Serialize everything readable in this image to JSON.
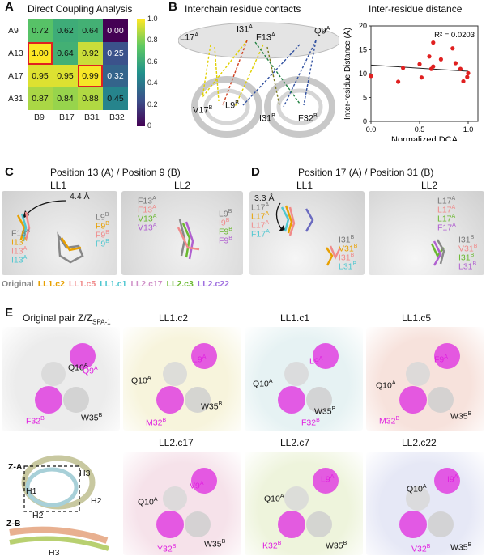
{
  "panels": {
    "A": {
      "letter": "A",
      "title": "Direct Coupling Analysis"
    },
    "B": {
      "letter": "B",
      "left_title": "Interchain residue contacts",
      "right_title": "Inter-residue distance"
    },
    "C": {
      "letter": "C",
      "title": "Position 13 (A) / Position 9 (B)"
    },
    "D": {
      "letter": "D",
      "title": "Position 17 (A) / Position 31 (B)"
    },
    "E": {
      "letter": "E"
    }
  },
  "heatmap": {
    "rows": [
      "A9",
      "A13",
      "A17",
      "A31"
    ],
    "cols": [
      "B9",
      "B17",
      "B31",
      "B32"
    ],
    "values": [
      [
        0.72,
        0.62,
        0.64,
        0.0
      ],
      [
        1.0,
        0.64,
        0.92,
        0.25
      ],
      [
        0.95,
        0.95,
        0.99,
        0.32
      ],
      [
        0.87,
        0.84,
        0.88,
        0.45
      ]
    ],
    "display": [
      [
        "0.72",
        "0.62",
        "0.64",
        "0.00"
      ],
      [
        "1.00",
        "0.64",
        "0.92",
        "0.25"
      ],
      [
        "0.95",
        "0.95",
        "0.99",
        "0.32"
      ],
      [
        "0.87",
        "0.84",
        "0.88",
        "0.45"
      ]
    ],
    "highlighted": [
      [
        1,
        0
      ],
      [
        2,
        2
      ]
    ],
    "colorbar_ticks": [
      "1.0",
      "0.8",
      "0.6",
      "0.4",
      "0.2",
      "0"
    ]
  },
  "contact_labels": {
    "L17A": [
      "L17",
      "A"
    ],
    "I31A": [
      "I31",
      "A"
    ],
    "F13A": [
      "F13",
      "A"
    ],
    "Q9A": [
      "Q9",
      "A"
    ],
    "V17B": [
      "V17",
      "B"
    ],
    "L9B": [
      "L9",
      "B"
    ],
    "I31B": [
      "I31",
      "B"
    ],
    "F32B": [
      "F32",
      "B"
    ]
  },
  "chart_data": {
    "type": "scatter",
    "title": "Inter-residue distance",
    "xlabel": "Normalized DCA",
    "ylabel": "Inter-residue Distance (Å)",
    "xlim": [
      0,
      1.1
    ],
    "ylim": [
      0,
      20
    ],
    "xticks": [
      "0.0",
      "0.5",
      "1.0"
    ],
    "yticks": [
      "0",
      "5",
      "10",
      "15",
      "20"
    ],
    "annotation": "R² = 0.0203",
    "x": [
      0.0,
      0.28,
      0.33,
      0.5,
      0.52,
      0.6,
      0.62,
      0.64,
      0.64,
      0.72,
      0.84,
      0.87,
      0.92,
      0.95,
      0.99,
      1.0
    ],
    "y": [
      9.5,
      8.3,
      11.2,
      12.0,
      9.2,
      13.6,
      11.0,
      16.5,
      11.5,
      13.0,
      15.3,
      12.2,
      11.0,
      8.4,
      9.3,
      10.1
    ],
    "fit": {
      "x": [
        0.0,
        1.0
      ],
      "y": [
        11.8,
        10.5
      ]
    },
    "point_color": "#e02020"
  },
  "panel_c": {
    "LL1": {
      "name": "LL1",
      "dist": "4.4 Å",
      "left": [
        [
          "F13",
          "A",
          "#777777"
        ],
        [
          "I13",
          "A",
          "#e8a000"
        ],
        [
          "I13",
          "A",
          "#f08a8a"
        ],
        [
          "I13",
          "A",
          "#4fc7d0"
        ]
      ],
      "right": [
        [
          "L9",
          "B",
          "#777777"
        ],
        [
          "F9",
          "B",
          "#e8a000"
        ],
        [
          "F9",
          "B",
          "#f08a8a"
        ],
        [
          "F9",
          "B",
          "#4fc7d0"
        ]
      ]
    },
    "LL2": {
      "name": "LL2",
      "left": [
        [
          "F13",
          "A",
          "#777777"
        ],
        [
          "F13",
          "A",
          "#f08a8a"
        ],
        [
          "V13",
          "A",
          "#6ab830"
        ],
        [
          "V13",
          "A",
          "#b060d0"
        ]
      ],
      "right": [
        [
          "L9",
          "B",
          "#777777"
        ],
        [
          "I9",
          "B",
          "#f08a8a"
        ],
        [
          "F9",
          "B",
          "#6ab830"
        ],
        [
          "F9",
          "B",
          "#b060d0"
        ]
      ]
    }
  },
  "panel_d": {
    "LL1": {
      "name": "LL1",
      "dist": "3.3 Å",
      "left": [
        [
          "L17",
          "A",
          "#777777"
        ],
        [
          "L17",
          "A",
          "#e8a000"
        ],
        [
          "L17",
          "A",
          "#f08a8a"
        ],
        [
          "F17",
          "A",
          "#4fc7d0"
        ]
      ],
      "right": [
        [
          "I31",
          "B",
          "#777777"
        ],
        [
          "V31",
          "B",
          "#e8a000"
        ],
        [
          "I31",
          "B",
          "#f08a8a"
        ],
        [
          "L31",
          "B",
          "#4fc7d0"
        ]
      ]
    },
    "LL2": {
      "name": "LL2",
      "left": [
        [
          "L17",
          "A",
          "#777777"
        ],
        [
          "L17",
          "A",
          "#f08a8a"
        ],
        [
          "L17",
          "A",
          "#6ab830"
        ],
        [
          "F17",
          "A",
          "#b060d0"
        ]
      ],
      "right": [
        [
          "I31",
          "B",
          "#777777"
        ],
        [
          "V31",
          "B",
          "#f08a8a"
        ],
        [
          "I31",
          "B",
          "#6ab830"
        ],
        [
          "L31",
          "B",
          "#b060d0"
        ]
      ]
    }
  },
  "legend": [
    {
      "text": "Original",
      "color": "#888888"
    },
    {
      "text": "LL1.c2",
      "color": "#e8a000"
    },
    {
      "text": "LL1.c5",
      "color": "#f08a8a"
    },
    {
      "text": "LL1.c1",
      "color": "#4fc7d0"
    },
    {
      "text": "LL2.c17",
      "color": "#d090c8"
    },
    {
      "text": "LL2.c3",
      "color": "#6ab830"
    },
    {
      "text": "LL2.c22",
      "color": "#a070e0"
    }
  ],
  "panel_e": [
    {
      "title": "Original pair Z/Z",
      "title_sub": "SPA-1",
      "bg": "#ececec",
      "labels": [
        [
          "Q10",
          "A",
          "#111"
        ],
        [
          "Q9",
          "A",
          "#e020e0"
        ],
        [
          "F32",
          "B",
          "#e020e0"
        ],
        [
          "W35",
          "B",
          "#111"
        ]
      ]
    },
    {
      "title": "LL1.c2",
      "bg": "#f7f4dc",
      "labels": [
        [
          "L9",
          "A",
          "#e020e0"
        ],
        [
          "Q10",
          "A",
          "#111"
        ],
        [
          "M32",
          "B",
          "#e020e0"
        ],
        [
          "W35",
          "B",
          "#111"
        ]
      ]
    },
    {
      "title": "LL1.c1",
      "bg": "#e6f2f3",
      "labels": [
        [
          "L9",
          "A",
          "#e020e0"
        ],
        [
          "Q10",
          "A",
          "#111"
        ],
        [
          "F32",
          "B",
          "#e020e0"
        ],
        [
          "W35",
          "B",
          "#111"
        ]
      ]
    },
    {
      "title": "LL1.c5",
      "bg": "#f7e2dc",
      "labels": [
        [
          "F9",
          "A",
          "#e020e0"
        ],
        [
          "Q10",
          "A",
          "#111"
        ],
        [
          "M32",
          "B",
          "#e020e0"
        ],
        [
          "W35",
          "B",
          "#111"
        ]
      ]
    },
    {
      "title": "",
      "bg": "#ffffff",
      "labels": [
        [
          "Z-A",
          "",
          "#111"
        ],
        [
          "H3",
          "",
          "#111"
        ],
        [
          "H1",
          "",
          "#111"
        ],
        [
          "H2",
          "",
          "#111"
        ],
        [
          "H2",
          "",
          "#111"
        ],
        [
          "Z-B",
          "",
          "#111"
        ],
        [
          "H3",
          "",
          "#111"
        ]
      ]
    },
    {
      "title": "LL2.c17",
      "bg": "#f6e2ea",
      "labels": [
        [
          "V9",
          "A",
          "#e020e0"
        ],
        [
          "Q10",
          "A",
          "#111"
        ],
        [
          "Y32",
          "B",
          "#e020e0"
        ],
        [
          "W35",
          "B",
          "#111"
        ]
      ]
    },
    {
      "title": "LL2.c7",
      "bg": "#eef4dc",
      "labels": [
        [
          "L9",
          "A",
          "#e020e0"
        ],
        [
          "Q10",
          "A",
          "#111"
        ],
        [
          "K32",
          "B",
          "#e020e0"
        ],
        [
          "W35",
          "B",
          "#111"
        ]
      ]
    },
    {
      "title": "LL2.c22",
      "bg": "#e6e8f6",
      "labels": [
        [
          "I9",
          "A",
          "#e020e0"
        ],
        [
          "Q10",
          "A",
          "#111"
        ],
        [
          "V32",
          "B",
          "#e020e0"
        ],
        [
          "W35",
          "B",
          "#111"
        ]
      ]
    }
  ]
}
